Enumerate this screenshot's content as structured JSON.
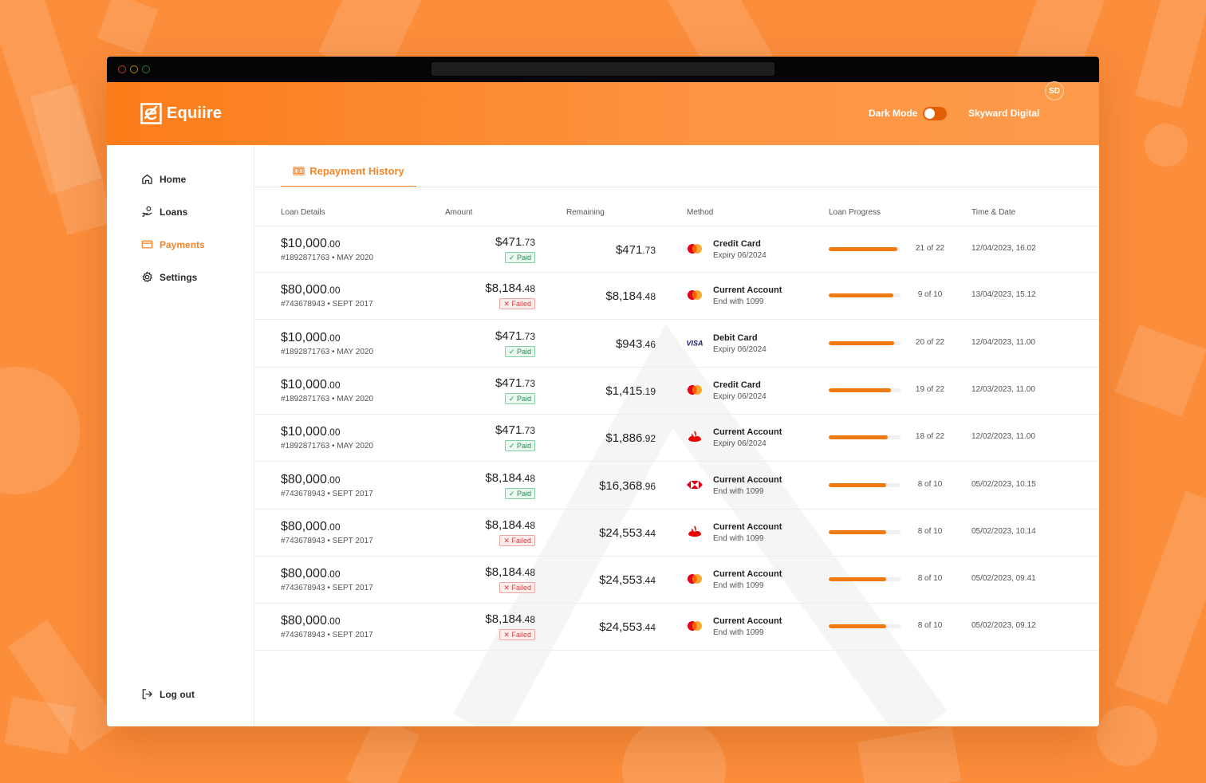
{
  "brand": {
    "name": "Equiire"
  },
  "header": {
    "dark_mode_label": "Dark Mode",
    "dark_mode_on": false,
    "user_name": "Skyward Digital",
    "user_initials": "SD"
  },
  "sidebar": {
    "items": [
      {
        "label": "Home",
        "icon": "home-icon",
        "active": false
      },
      {
        "label": "Loans",
        "icon": "hand-coins-icon",
        "active": false
      },
      {
        "label": "Payments",
        "icon": "credit-card-icon",
        "active": true
      },
      {
        "label": "Settings",
        "icon": "gear-icon",
        "active": false
      }
    ],
    "logout_label": "Log out"
  },
  "tab": {
    "label": "Repayment History",
    "icon": "money-bill-icon"
  },
  "columns": [
    "Loan Details",
    "Amount",
    "Remaining",
    "Method",
    "Loan Progress",
    "Time & Date"
  ],
  "colors": {
    "accent": "#f5862a",
    "header": "#fc7c19",
    "paid": "#219150",
    "failed": "#d93b3b"
  },
  "rows": [
    {
      "loan_main": "$10,000",
      "loan_cents": ".00",
      "ref": "#1892871763 • MAY 2020",
      "amount_main": "$471",
      "amount_cents": ".73",
      "status": "Paid",
      "remaining_main": "$471",
      "remaining_cents": ".73",
      "method_icon": "mastercard-icon",
      "method_title": "Credit Card",
      "method_sub": "Expiry 06/2024",
      "progress_done": 21,
      "progress_total": 22,
      "progress_text": "21 of 22",
      "datetime": "12/04/2023, 16.02"
    },
    {
      "loan_main": "$80,000",
      "loan_cents": ".00",
      "ref": "#743678943 • SEPT 2017",
      "amount_main": "$8,184",
      "amount_cents": ".48",
      "status": "Failed",
      "remaining_main": "$8,184",
      "remaining_cents": ".48",
      "method_icon": "mastercard-icon",
      "method_title": "Current Account",
      "method_sub": "End with 1099",
      "progress_done": 9,
      "progress_total": 10,
      "progress_text": "9 of 10",
      "datetime": "13/04/2023, 15.12"
    },
    {
      "loan_main": "$10,000",
      "loan_cents": ".00",
      "ref": "#1892871763 • MAY 2020",
      "amount_main": "$471",
      "amount_cents": ".73",
      "status": "Paid",
      "remaining_main": "$943",
      "remaining_cents": ".46",
      "method_icon": "visa-icon",
      "method_title": "Debit Card",
      "method_sub": "Expiry 06/2024",
      "progress_done": 20,
      "progress_total": 22,
      "progress_text": "20 of 22",
      "datetime": "12/04/2023, 11.00"
    },
    {
      "loan_main": "$10,000",
      "loan_cents": ".00",
      "ref": "#1892871763 • MAY 2020",
      "amount_main": "$471",
      "amount_cents": ".73",
      "status": "Paid",
      "remaining_main": "$1,415",
      "remaining_cents": ".19",
      "method_icon": "mastercard-icon",
      "method_title": "Credit Card",
      "method_sub": "Expiry 06/2024",
      "progress_done": 19,
      "progress_total": 22,
      "progress_text": "19 of 22",
      "datetime": "12/03/2023, 11.00"
    },
    {
      "loan_main": "$10,000",
      "loan_cents": ".00",
      "ref": "#1892871763 • MAY 2020",
      "amount_main": "$471",
      "amount_cents": ".73",
      "status": "Paid",
      "remaining_main": "$1,886",
      "remaining_cents": ".92",
      "method_icon": "santander-icon",
      "method_title": "Current Account",
      "method_sub": "Expiry 06/2024",
      "progress_done": 18,
      "progress_total": 22,
      "progress_text": "18 of 22",
      "datetime": "12/02/2023, 11.00"
    },
    {
      "loan_main": "$80,000",
      "loan_cents": ".00",
      "ref": "#743678943 • SEPT 2017",
      "amount_main": "$8,184",
      "amount_cents": ".48",
      "status": "Paid",
      "remaining_main": "$16,368",
      "remaining_cents": ".96",
      "method_icon": "hsbc-icon",
      "method_title": "Current Account",
      "method_sub": "End with 1099",
      "progress_done": 8,
      "progress_total": 10,
      "progress_text": "8 of 10",
      "datetime": "05/02/2023, 10.15"
    },
    {
      "loan_main": "$80,000",
      "loan_cents": ".00",
      "ref": "#743678943 • SEPT 2017",
      "amount_main": "$8,184",
      "amount_cents": ".48",
      "status": "Failed",
      "remaining_main": "$24,553",
      "remaining_cents": ".44",
      "method_icon": "santander-icon",
      "method_title": "Current Account",
      "method_sub": "End with 1099",
      "progress_done": 8,
      "progress_total": 10,
      "progress_text": "8 of 10",
      "datetime": "05/02/2023, 10.14"
    },
    {
      "loan_main": "$80,000",
      "loan_cents": ".00",
      "ref": "#743678943 • SEPT 2017",
      "amount_main": "$8,184",
      "amount_cents": ".48",
      "status": "Failed",
      "remaining_main": "$24,553",
      "remaining_cents": ".44",
      "method_icon": "mastercard-icon",
      "method_title": "Current Account",
      "method_sub": "End with 1099",
      "progress_done": 8,
      "progress_total": 10,
      "progress_text": "8 of 10",
      "datetime": "05/02/2023, 09.41"
    },
    {
      "loan_main": "$80,000",
      "loan_cents": ".00",
      "ref": "#743678943 • SEPT 2017",
      "amount_main": "$8,184",
      "amount_cents": ".48",
      "status": "Failed",
      "remaining_main": "$24,553",
      "remaining_cents": ".44",
      "method_icon": "mastercard-icon",
      "method_title": "Current Account",
      "method_sub": "End with 1099",
      "progress_done": 8,
      "progress_total": 10,
      "progress_text": "8 of 10",
      "datetime": "05/02/2023, 09.12"
    }
  ]
}
